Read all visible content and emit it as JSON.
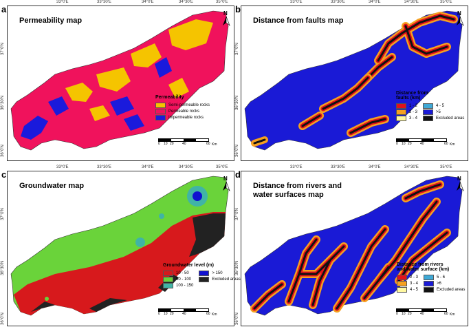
{
  "colors": {
    "semi_permeable": "#f5c400",
    "permeable": "#f0125c",
    "impermeable": "#1a1adc",
    "fault_red": "#e2121a",
    "fault_orange": "#f5a020",
    "fault_yellow": "#fff8a0",
    "cyan": "#3fa9d6",
    "blue": "#1a1ad6",
    "black": "#111111",
    "gw_red": "#d7191c",
    "gw_green": "#6ad33a",
    "gw_teal": "#40b4a6",
    "gw_blue": "#1010d0"
  },
  "longitudes": [
    "33°0'E",
    "33°30'E",
    "34°0'E",
    "34°30'E",
    "35°0'E"
  ],
  "latitudes": [
    "37°0'N",
    "36°30'N",
    "36°0'N"
  ],
  "north_label": "N",
  "scale": {
    "ticks": [
      "0",
      "10",
      "20",
      "40",
      "60"
    ],
    "unit": "Km"
  },
  "panels": {
    "a": {
      "letter": "a",
      "title": "Permeability map",
      "legend_title": "Permeability",
      "legend_items": [
        "Semi-permeable rocks",
        "Permeable rocks",
        "Impermeable rocks"
      ]
    },
    "b": {
      "letter": "b",
      "title": "Distance from faults map",
      "legend_title_1": "Distance from",
      "legend_title_2": "faults (km)",
      "legend_items": [
        "1 - 2",
        "4 - 5",
        "2 - 3",
        ">5",
        "3 - 4",
        "Excluded areas"
      ]
    },
    "c": {
      "letter": "c",
      "title": "Groundwater map",
      "legend_title": "Groundwater level (m)",
      "legend_items": [
        "10 - 50",
        "> 150",
        "50 - 100",
        "Excluded areas",
        "100 - 150"
      ]
    },
    "d": {
      "letter": "d",
      "title_1": "Distance from rivers and",
      "title_2": "water surfaces map",
      "legend_title_1": "Distance from rivers",
      "legend_title_2": "and water surface (km)",
      "legend_items": [
        "2 - 3",
        "5 - 6",
        "3 - 4",
        ">6",
        "4 - 5",
        "Excluded areas"
      ]
    }
  }
}
